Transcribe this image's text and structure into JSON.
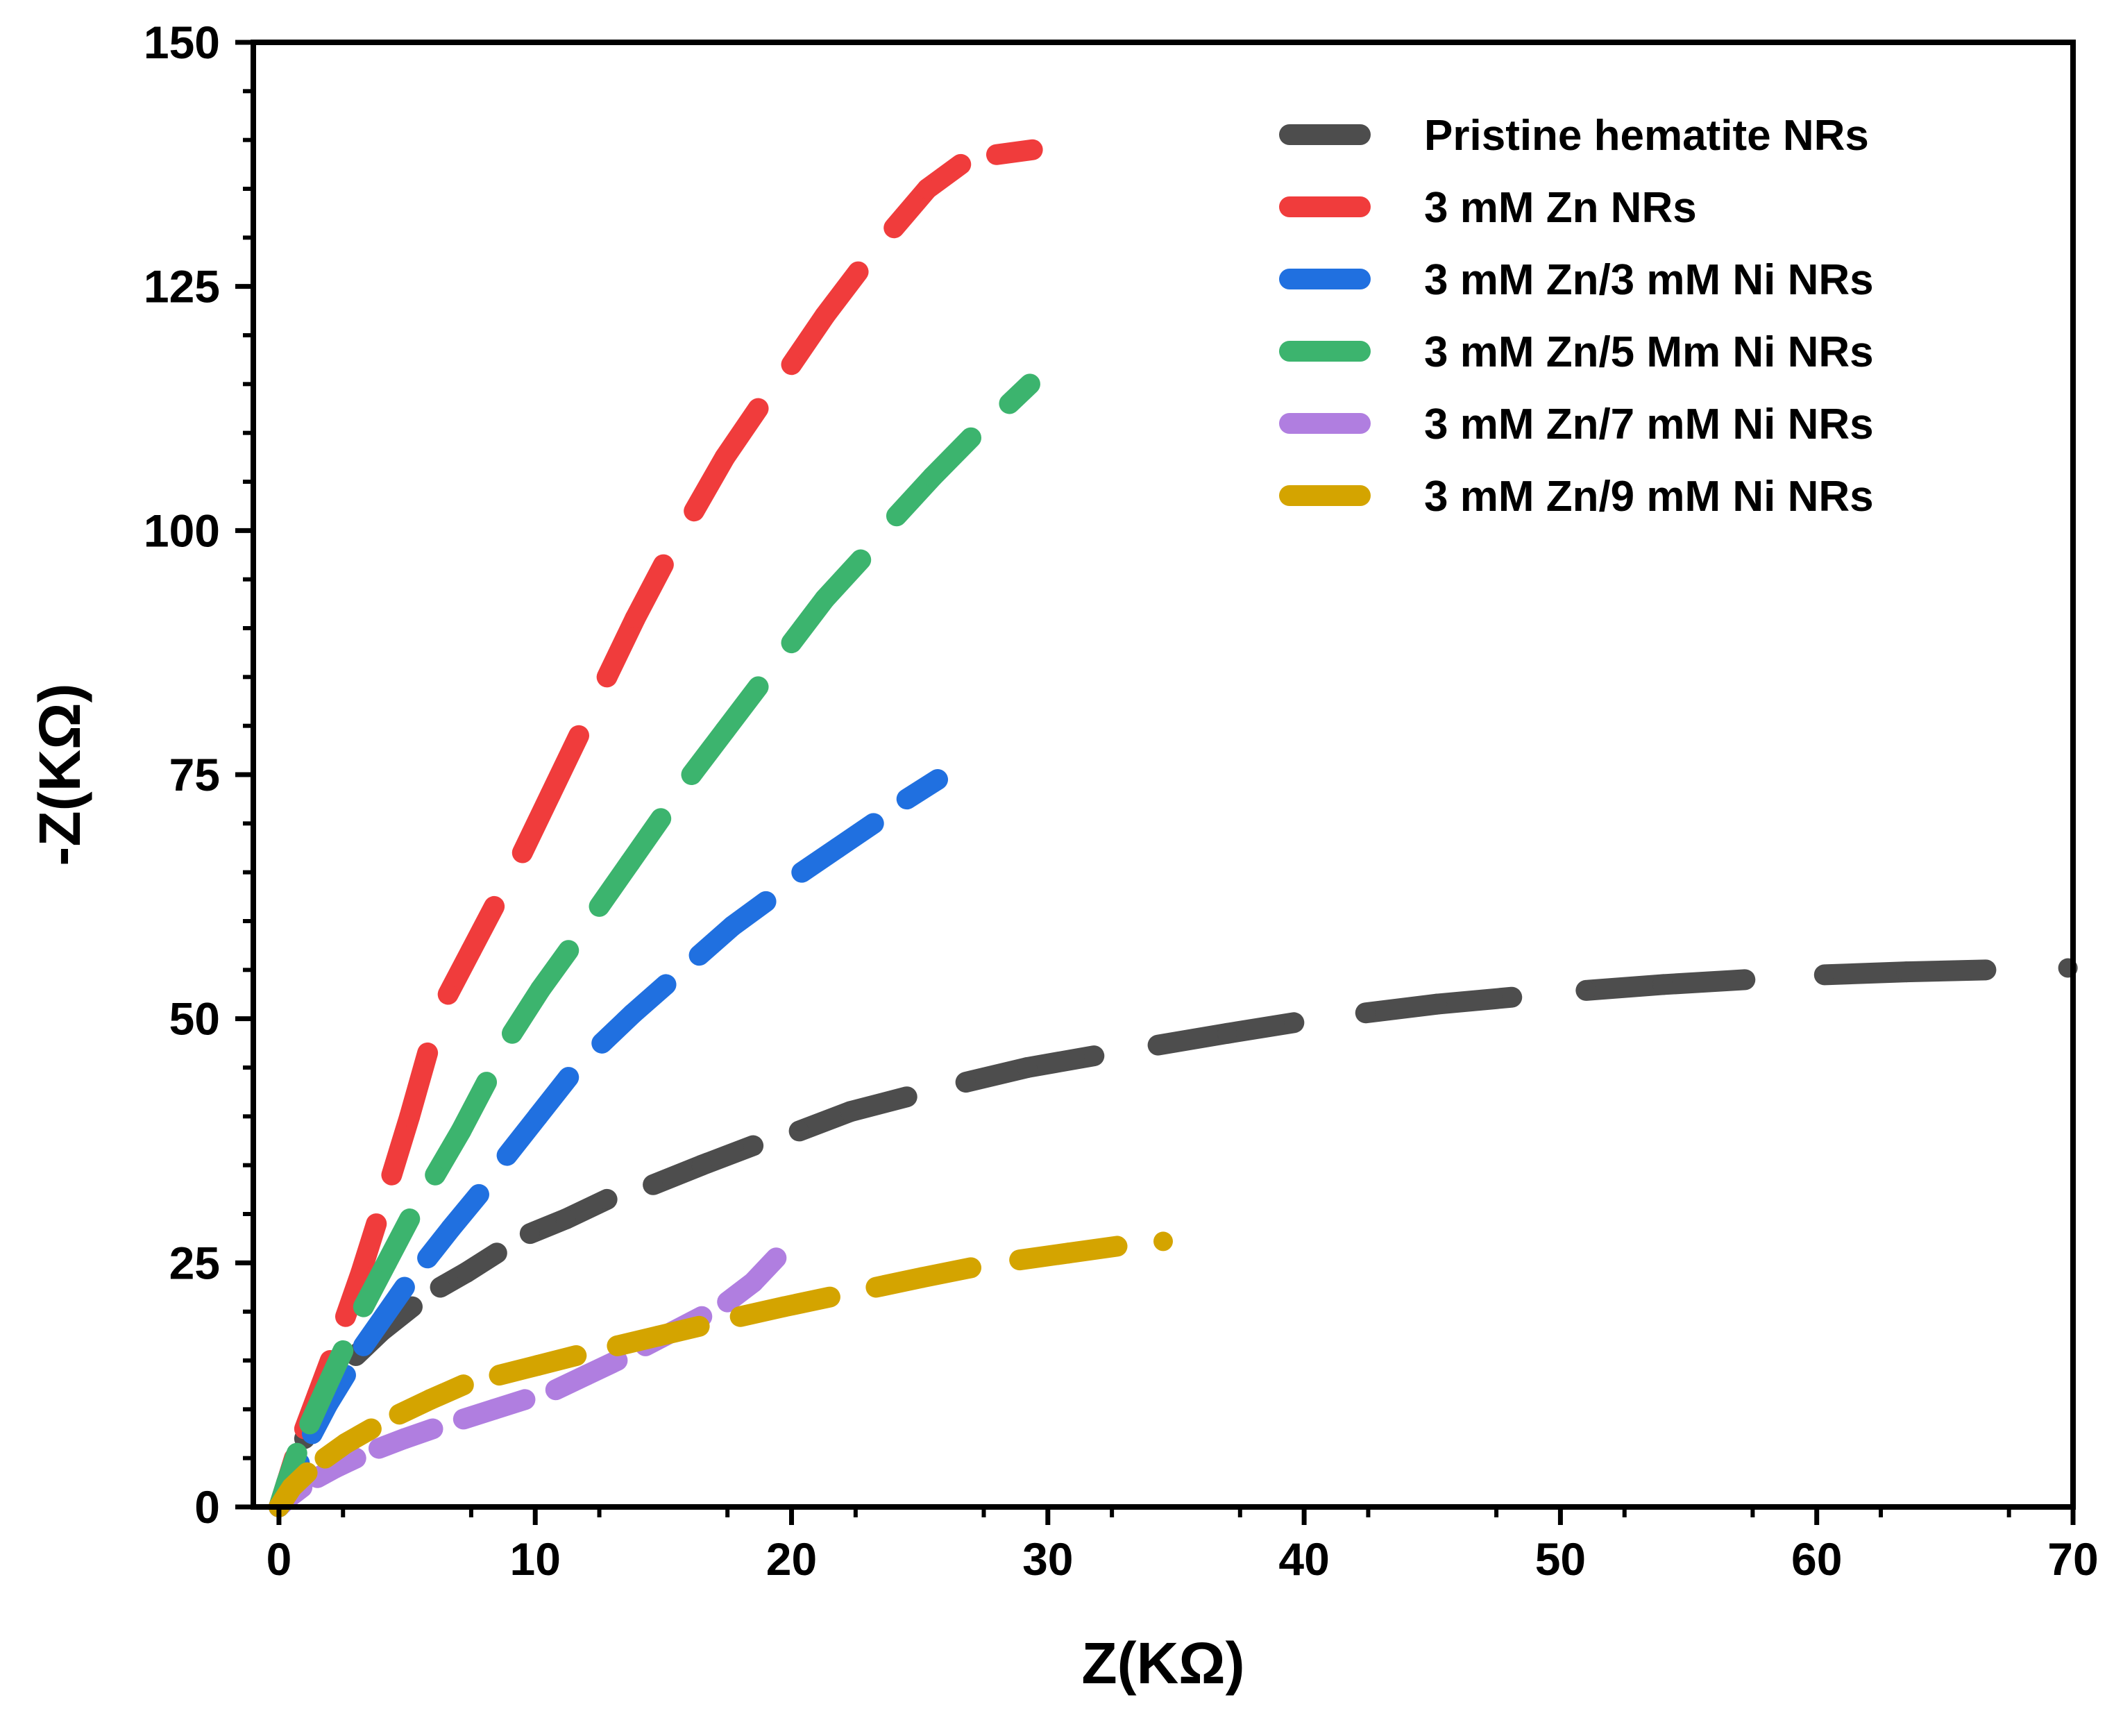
{
  "chart_data": {
    "type": "scatter",
    "title": "",
    "xlabel": "Z(KΩ)",
    "ylabel": "-Z(KΩ)",
    "xlim": [
      -1,
      70
    ],
    "ylim": [
      0,
      150
    ],
    "xticks": [
      0,
      10,
      20,
      30,
      40,
      50,
      60,
      70
    ],
    "yticks": [
      0,
      25,
      50,
      75,
      100,
      125,
      150
    ],
    "grid": false,
    "legend_position": "top-right",
    "series": [
      {
        "name": "Pristine hematite NRs",
        "color": "#4d4d4d",
        "x": [
          0,
          0.3,
          0.6,
          1.0,
          1.5,
          2.2,
          3.0,
          4.0,
          5.2,
          6.3,
          7.3,
          8.5,
          9.8,
          11.2,
          12.8,
          14.6,
          16.5,
          18.5,
          20.3,
          22.3,
          24.5,
          26.8,
          29.2,
          31.8,
          34.3,
          37.0,
          39.6,
          42.4,
          45.2,
          48.1,
          51.0,
          54.0,
          57.2,
          60.3,
          63.5,
          66.6,
          69.8
        ],
        "y": [
          0,
          2,
          4.5,
          7,
          9.5,
          12.5,
          15.5,
          18,
          20.5,
          22.5,
          24,
          26,
          28,
          29.5,
          31.5,
          33,
          35,
          37,
          38.5,
          40.5,
          42,
          43.5,
          45,
          46.2,
          47.3,
          48.5,
          49.6,
          50.6,
          51.5,
          52.2,
          52.9,
          53.5,
          54,
          54.5,
          54.8,
          55,
          55.2
        ]
      },
      {
        "name": "3 mM Zn NRs",
        "color": "#f03c3c",
        "x": [
          0,
          0.3,
          0.6,
          1.0,
          1.5,
          2.0,
          2.6,
          3.2,
          3.8,
          4.4,
          5.1,
          5.8,
          6.6,
          7.5,
          8.4,
          9.5,
          10.6,
          11.7,
          12.8,
          13.9,
          15.0,
          16.2,
          17.4,
          18.7,
          20.0,
          21.3,
          22.6,
          24.0,
          25.3,
          26.6,
          28.0,
          29.4
        ],
        "y": [
          0,
          2.5,
          5,
          8,
          11.5,
          15,
          19.5,
          24,
          29,
          34,
          40,
          46.5,
          52.5,
          57,
          61.5,
          67,
          73,
          79,
          85,
          91,
          96.5,
          102,
          107.5,
          112.5,
          117,
          122,
          126.5,
          131,
          135,
          137.5,
          138.5,
          139
        ]
      },
      {
        "name": "3 mM Zn/3 mM Ni NRs",
        "color": "#2070e0",
        "x": [
          0,
          0.4,
          0.8,
          1.3,
          1.9,
          2.6,
          3.3,
          4.1,
          4.9,
          5.8,
          6.7,
          7.8,
          8.9,
          10.1,
          11.3,
          12.6,
          13.8,
          15.1,
          16.4,
          17.7,
          19.0,
          20.4,
          21.8,
          23.2,
          24.5,
          25.7
        ],
        "y": [
          0,
          2,
          4.5,
          7.5,
          10.5,
          13.5,
          16.5,
          19.5,
          22.5,
          25.5,
          28.5,
          32,
          36,
          40,
          44,
          47.5,
          50.5,
          53.5,
          56.5,
          59.5,
          62,
          65,
          67.5,
          70,
          72.5,
          74.5
        ]
      },
      {
        "name": "3 mM Zn/5 Mm Ni NRs",
        "color": "#3cb46e",
        "x": [
          0,
          0.3,
          0.7,
          1.2,
          1.8,
          2.5,
          3.3,
          4.2,
          5.1,
          6.1,
          7.1,
          8.1,
          9.1,
          10.2,
          11.3,
          12.5,
          13.7,
          14.9,
          16.1,
          17.4,
          18.7,
          20.0,
          21.3,
          22.7,
          24.1,
          25.5,
          27.0,
          28.5,
          29.3
        ],
        "y": [
          0,
          2.5,
          5.5,
          8.5,
          12,
          16,
          20.5,
          25,
          29.5,
          34,
          38.5,
          43.5,
          48.5,
          53,
          57,
          61.5,
          66,
          70.5,
          75,
          79.5,
          84,
          88.5,
          93,
          97,
          101.5,
          105.5,
          109.5,
          113,
          115
        ]
      },
      {
        "name": "3 mM Zn/7 mM Ni NRs",
        "color": "#b07ee0",
        "x": [
          0,
          0.4,
          0.9,
          1.5,
          2.2,
          3.0,
          3.9,
          4.9,
          6.0,
          7.2,
          8.4,
          9.6,
          10.8,
          12.0,
          13.2,
          14.3,
          15.4,
          16.5,
          17.5,
          18.5,
          19.4
        ],
        "y": [
          0,
          1,
          2,
          3,
          4,
          5,
          6,
          7,
          8,
          9,
          10,
          11,
          12,
          13.5,
          15,
          16.5,
          18,
          19.5,
          21,
          23,
          25.5
        ]
      },
      {
        "name": "3 mM Zn/9 mM Ni NRs",
        "color": "#d4a400",
        "x": [
          0,
          0.5,
          1.1,
          1.8,
          2.6,
          3.6,
          4.7,
          5.9,
          7.2,
          8.6,
          10.1,
          11.6,
          13.2,
          14.8,
          16.4,
          18.0,
          19.7,
          21.5,
          23.3,
          25.1,
          27.0,
          28.9,
          30.8,
          32.7,
          34.5
        ],
        "y": [
          0,
          2,
          3.5,
          5,
          6.5,
          8,
          9.5,
          11,
          12.5,
          13.5,
          14.5,
          15.5,
          16.5,
          17.5,
          18.5,
          19.5,
          20.5,
          21.5,
          22.5,
          23.5,
          24.5,
          25.3,
          26,
          26.7,
          27.2
        ]
      }
    ]
  }
}
